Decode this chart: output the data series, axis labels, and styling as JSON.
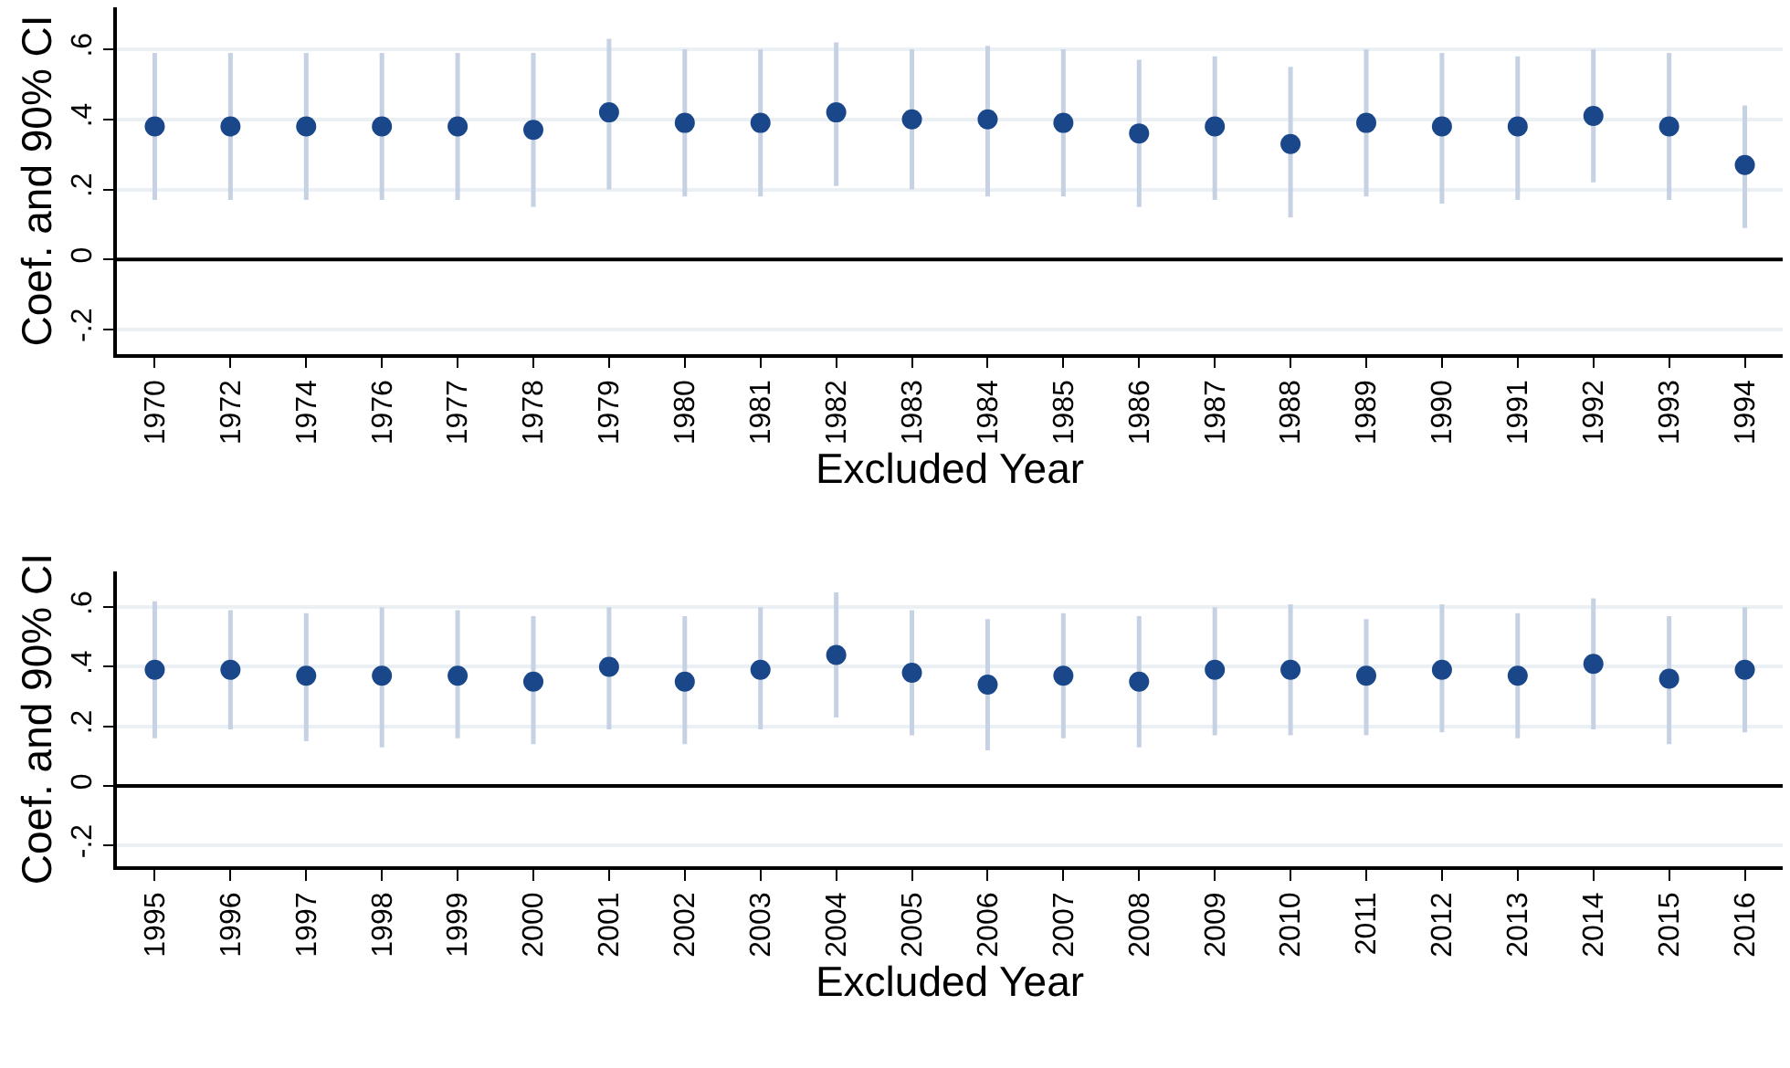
{
  "chart_data": [
    {
      "type": "scatter",
      "xlabel": "Excluded Year",
      "ylabel": "Coef. and 90% CI",
      "categories": [
        "1970",
        "1972",
        "1974",
        "1976",
        "1977",
        "1978",
        "1979",
        "1980",
        "1981",
        "1982",
        "1983",
        "1984",
        "1985",
        "1986",
        "1987",
        "1988",
        "1989",
        "1990",
        "1991",
        "1992",
        "1993",
        "1994"
      ],
      "series": [
        {
          "color": "#1a4789",
          "values": [
            0.38,
            0.38,
            0.38,
            0.38,
            0.38,
            0.37,
            0.42,
            0.39,
            0.39,
            0.42,
            0.4,
            0.4,
            0.39,
            0.36,
            0.38,
            0.33,
            0.39,
            0.38,
            0.38,
            0.41,
            0.38,
            0.27
          ],
          "errors": [
            [
              0.17,
              0.59
            ],
            [
              0.17,
              0.59
            ],
            [
              0.17,
              0.59
            ],
            [
              0.17,
              0.59
            ],
            [
              0.17,
              0.59
            ],
            [
              0.15,
              0.59
            ],
            [
              0.2,
              0.63
            ],
            [
              0.18,
              0.6
            ],
            [
              0.18,
              0.6
            ],
            [
              0.21,
              0.62
            ],
            [
              0.2,
              0.6
            ],
            [
              0.18,
              0.61
            ],
            [
              0.18,
              0.6
            ],
            [
              0.15,
              0.57
            ],
            [
              0.17,
              0.58
            ],
            [
              0.12,
              0.55
            ],
            [
              0.18,
              0.6
            ],
            [
              0.16,
              0.59
            ],
            [
              0.17,
              0.58
            ],
            [
              0.22,
              0.6
            ],
            [
              0.17,
              0.59
            ],
            [
              0.09,
              0.44
            ]
          ]
        }
      ],
      "ylim": [
        -0.27,
        0.72
      ],
      "yticks": [
        {
          "value": -0.2,
          "label": "-.2"
        },
        0,
        {
          "value": 0.2,
          "label": ".2"
        },
        {
          "value": 0.4,
          "label": ".4"
        },
        {
          "value": 0.6,
          "label": ".6"
        }
      ],
      "ref_lines": [
        {
          "axis": "y",
          "value": 0,
          "color": "#000000"
        }
      ],
      "grid": "y",
      "marker": "circle"
    },
    {
      "type": "scatter",
      "xlabel": "Excluded Year",
      "ylabel": "Coef. and 90% CI",
      "categories": [
        "1995",
        "1996",
        "1997",
        "1998",
        "1999",
        "2000",
        "2001",
        "2002",
        "2003",
        "2004",
        "2005",
        "2006",
        "2007",
        "2008",
        "2009",
        "2010",
        "2011",
        "2012",
        "2013",
        "2014",
        "2015",
        "2016"
      ],
      "series": [
        {
          "color": "#1a4789",
          "values": [
            0.39,
            0.39,
            0.37,
            0.37,
            0.37,
            0.35,
            0.4,
            0.35,
            0.39,
            0.44,
            0.38,
            0.34,
            0.37,
            0.35,
            0.39,
            0.39,
            0.37,
            0.39,
            0.37,
            0.41,
            0.36,
            0.39
          ],
          "errors": [
            [
              0.16,
              0.62
            ],
            [
              0.19,
              0.59
            ],
            [
              0.15,
              0.58
            ],
            [
              0.13,
              0.6
            ],
            [
              0.16,
              0.59
            ],
            [
              0.14,
              0.57
            ],
            [
              0.19,
              0.6
            ],
            [
              0.14,
              0.57
            ],
            [
              0.19,
              0.6
            ],
            [
              0.23,
              0.65
            ],
            [
              0.17,
              0.59
            ],
            [
              0.12,
              0.56
            ],
            [
              0.16,
              0.58
            ],
            [
              0.13,
              0.57
            ],
            [
              0.17,
              0.6
            ],
            [
              0.17,
              0.61
            ],
            [
              0.17,
              0.56
            ],
            [
              0.18,
              0.61
            ],
            [
              0.16,
              0.58
            ],
            [
              0.19,
              0.63
            ],
            [
              0.14,
              0.57
            ],
            [
              0.18,
              0.6
            ]
          ]
        }
      ],
      "ylim": [
        -0.27,
        0.72
      ],
      "yticks": [
        {
          "value": -0.2,
          "label": "-.2"
        },
        0,
        {
          "value": 0.2,
          "label": ".2"
        },
        {
          "value": 0.4,
          "label": ".4"
        },
        {
          "value": 0.6,
          "label": ".6"
        }
      ],
      "ref_lines": [
        {
          "axis": "y",
          "value": 0,
          "color": "#000000"
        }
      ],
      "grid": "y",
      "marker": "circle"
    }
  ]
}
